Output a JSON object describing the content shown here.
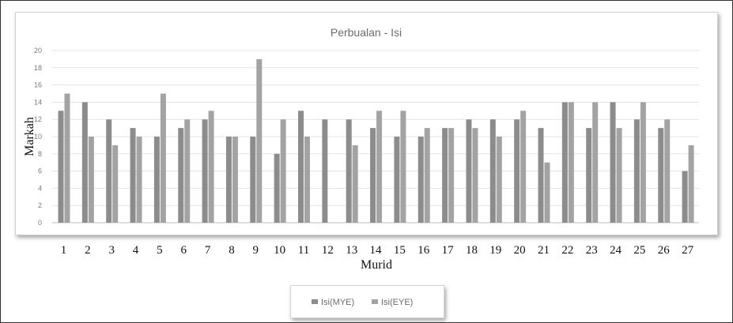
{
  "chart_data": {
    "type": "bar",
    "title": "Perbualan - Isi",
    "xlabel": "Murid",
    "ylabel": "Markah",
    "ylim": [
      0,
      20
    ],
    "yticks": [
      "0",
      "2",
      "4",
      "6",
      "8",
      "10",
      "12",
      "14",
      "16",
      "18",
      "20"
    ],
    "grid": true,
    "legend_position": "bottom",
    "categories": [
      "1",
      "2",
      "3",
      "4",
      "5",
      "6",
      "7",
      "8",
      "9",
      "10",
      "11",
      "12",
      "13",
      "14",
      "15",
      "16",
      "17",
      "18",
      "19",
      "20",
      "21",
      "22",
      "23",
      "24",
      "25",
      "26",
      "27"
    ],
    "series": [
      {
        "name": "Isi(MYE)",
        "color": "#8c8c8c",
        "values": [
          13,
          14,
          12,
          11,
          10,
          11,
          12,
          10,
          10,
          8,
          13,
          12,
          12,
          11,
          10,
          10,
          11,
          12,
          12,
          12,
          11,
          14,
          11,
          14,
          12,
          11,
          6
        ]
      },
      {
        "name": "Isi(EYE)",
        "color": "#a3a3a3",
        "values": [
          15,
          10,
          9,
          10,
          15,
          12,
          13,
          10,
          19,
          12,
          10,
          0,
          9,
          13,
          13,
          11,
          11,
          11,
          10,
          13,
          7,
          14,
          14,
          11,
          14,
          12,
          9
        ]
      }
    ]
  }
}
